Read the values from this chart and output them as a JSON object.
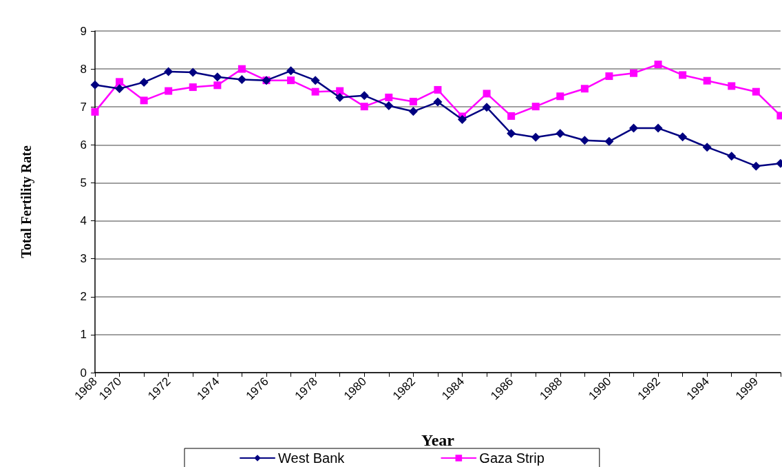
{
  "chart_data": {
    "type": "line",
    "xlabel": "Year",
    "ylabel": "Total Fertility Rate",
    "categories": [
      "1968",
      "1970",
      null,
      "1972",
      null,
      "1974",
      null,
      "1976",
      null,
      "1978",
      null,
      "1980",
      null,
      "1982",
      null,
      "1984",
      null,
      "1986",
      null,
      "1988",
      null,
      "1990",
      null,
      "1992",
      null,
      "1994",
      null,
      "1999",
      null
    ],
    "series": [
      {
        "name": "West Bank",
        "color": "#000080",
        "marker": "diamond",
        "values": [
          7.58,
          7.48,
          7.65,
          7.93,
          7.91,
          7.79,
          7.72,
          7.7,
          7.95,
          7.7,
          7.25,
          7.3,
          7.03,
          6.88,
          7.13,
          6.67,
          6.99,
          6.3,
          6.2,
          6.3,
          6.12,
          6.09,
          6.44,
          6.44,
          6.21,
          5.94,
          5.7,
          5.44,
          5.51
        ]
      },
      {
        "name": "Gaza Strip",
        "color": "#ff00ff",
        "marker": "square",
        "values": [
          6.87,
          7.66,
          7.17,
          7.42,
          7.52,
          7.57,
          8.0,
          7.7,
          7.7,
          7.4,
          7.42,
          7.01,
          7.25,
          7.14,
          7.45,
          6.75,
          7.35,
          6.76,
          7.01,
          7.28,
          7.48,
          7.81,
          7.89,
          8.12,
          7.84,
          7.69,
          7.55,
          7.4,
          6.77
        ]
      }
    ],
    "ylim": [
      0,
      9
    ],
    "yticks": [
      0,
      1,
      2,
      3,
      4,
      5,
      6,
      7,
      8,
      9
    ],
    "grid": "y",
    "legend": "bottom",
    "line_style": "solid"
  }
}
